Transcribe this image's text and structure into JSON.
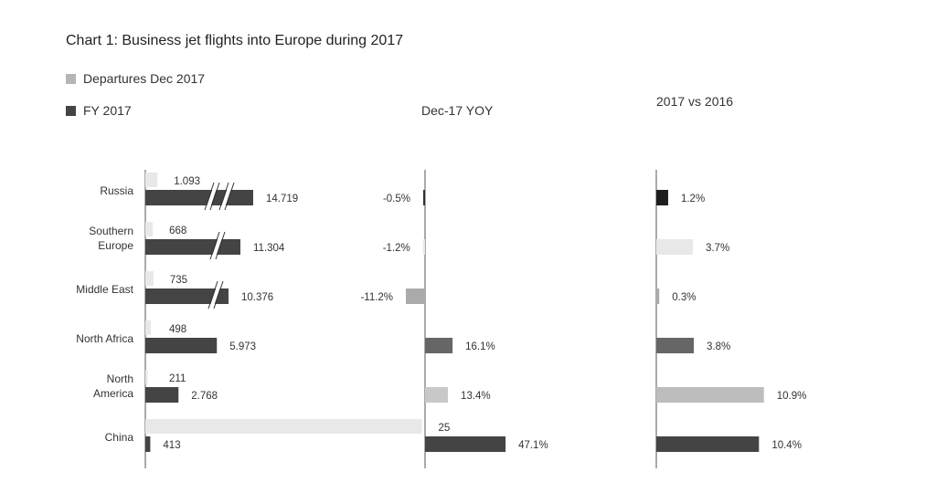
{
  "title": "Chart 1: Business jet flights into Europe during 2017",
  "legend": [
    {
      "label": "Departures Dec 2017",
      "color": "#b5b5b5"
    },
    {
      "label": "FY 2017",
      "color": "#444444"
    }
  ],
  "colors": {
    "dec_bar": "#e8e8e8",
    "fy_bar": "#444444",
    "axis": "#555555"
  },
  "chart_data": [
    {
      "type": "bar",
      "orientation": "horizontal",
      "title": "",
      "categories": [
        "Russia",
        "Southern\nEurope",
        "Middle East",
        "North Africa",
        "North\nAmerica",
        "China"
      ],
      "series": [
        {
          "name": "Departures Dec 2017",
          "values": [
            1.093,
            668,
            735,
            498,
            211,
            25
          ],
          "labels": [
            "1.093",
            "668",
            "735",
            "498",
            "211",
            "25"
          ]
        },
        {
          "name": "FY 2017",
          "values": [
            14.719,
            11.304,
            10.376,
            5.973,
            2.768,
            413
          ],
          "labels": [
            "14.719",
            "11.304",
            "10.376",
            "5.973",
            "2.768",
            "413"
          ]
        }
      ],
      "axis_break": {
        "categories": [
          "Russia",
          "Southern\nEurope",
          "Middle East"
        ]
      }
    },
    {
      "type": "bar",
      "orientation": "horizontal",
      "title": "Dec-17 YOY",
      "categories": [
        "Russia",
        "Southern\nEurope",
        "Middle East",
        "North Africa",
        "North\nAmerica",
        "China"
      ],
      "values": [
        -0.5,
        -1.2,
        -11.2,
        16.1,
        13.4,
        47.1
      ],
      "labels": [
        "-0.5%",
        "-1.2%",
        "-11.2%",
        "16.1%",
        "13.4%",
        "47.1%"
      ],
      "bar_colors": [
        "#333333",
        "#e8e8e8",
        "#aaaaaa",
        "#666666",
        "#c8c8c8",
        "#444444"
      ]
    },
    {
      "type": "bar",
      "orientation": "horizontal",
      "title": "2017 vs 2016",
      "categories": [
        "Russia",
        "Southern\nEurope",
        "Middle East",
        "North Africa",
        "North\nAmerica",
        "China"
      ],
      "values": [
        1.2,
        3.7,
        0.3,
        3.8,
        10.9,
        10.4
      ],
      "labels": [
        "1.2%",
        "3.7%",
        "0.3%",
        "3.8%",
        "10.9%",
        "10.4%"
      ],
      "bar_colors": [
        "#1e1e1e",
        "#e8e8e8",
        "#aaaaaa",
        "#666666",
        "#bdbdbd",
        "#444444"
      ]
    }
  ]
}
